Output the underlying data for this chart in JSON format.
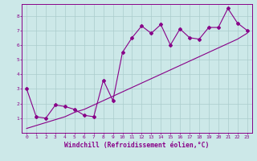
{
  "xlabel": "Windchill (Refroidissement éolien,°C)",
  "x_data": [
    0,
    1,
    2,
    3,
    4,
    5,
    6,
    7,
    8,
    9,
    10,
    11,
    12,
    13,
    14,
    15,
    16,
    17,
    18,
    19,
    20,
    21,
    22,
    23
  ],
  "y_jagged": [
    3.0,
    1.1,
    1.0,
    1.9,
    1.8,
    1.6,
    1.2,
    1.1,
    3.6,
    2.2,
    5.5,
    6.5,
    7.3,
    6.8,
    7.4,
    6.0,
    7.1,
    6.5,
    6.4,
    7.2,
    7.2,
    8.5,
    7.5,
    7.0
  ],
  "y_trend": [
    0.3,
    0.5,
    0.7,
    0.9,
    1.1,
    1.4,
    1.6,
    1.9,
    2.2,
    2.5,
    2.8,
    3.1,
    3.4,
    3.7,
    4.0,
    4.3,
    4.6,
    4.9,
    5.2,
    5.5,
    5.8,
    6.1,
    6.4,
    6.8
  ],
  "line_color": "#880088",
  "marker": "D",
  "markersize": 2.0,
  "bg_color": "#cce8e8",
  "grid_color": "#aacccc",
  "axis_color": "#880088",
  "xlim_min": -0.5,
  "xlim_max": 23.5,
  "ylim_min": 0,
  "ylim_max": 8.8,
  "xticks": [
    0,
    1,
    2,
    3,
    4,
    5,
    6,
    7,
    8,
    9,
    10,
    11,
    12,
    13,
    14,
    15,
    16,
    17,
    18,
    19,
    20,
    21,
    22,
    23
  ],
  "yticks": [
    1,
    2,
    3,
    4,
    5,
    6,
    7,
    8
  ],
  "tick_fontsize": 4.5,
  "xlabel_fontsize": 5.8,
  "linewidth": 0.8
}
